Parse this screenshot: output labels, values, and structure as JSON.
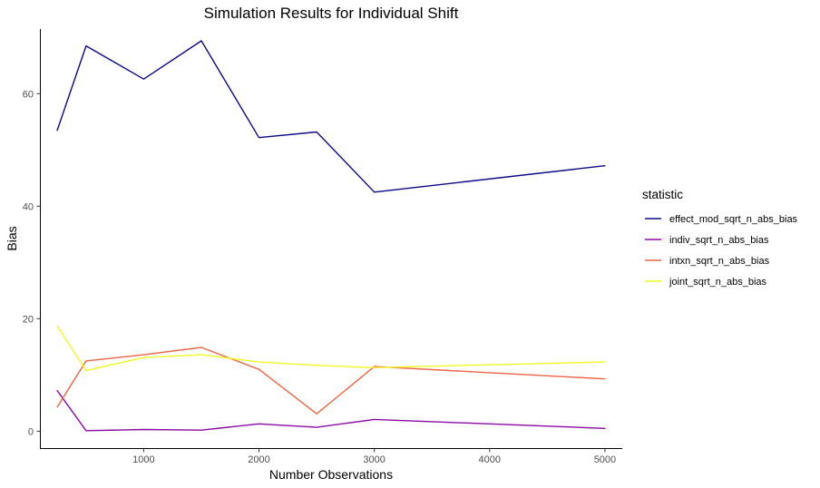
{
  "chart_data": {
    "type": "line",
    "title": "Simulation Results for Individual Shift",
    "xlabel": "Number Observations",
    "ylabel": "Bias",
    "xlim": [
      100,
      5150
    ],
    "ylim": [
      -3,
      71.5
    ],
    "xticks": [
      1000,
      2000,
      3000,
      4000,
      5000
    ],
    "yticks": [
      0,
      20,
      40,
      60
    ],
    "grid": false,
    "legend": {
      "title": "statistic",
      "position": "right"
    },
    "x": [
      250,
      500,
      1000,
      1500,
      2000,
      2500,
      3000,
      5000
    ],
    "series": [
      {
        "name": "effect_mod_sqrt_n_abs_bias",
        "color": "#0d0887",
        "values": [
          53.5,
          68.5,
          62.6,
          69.4,
          52.2,
          53.2,
          42.5,
          47.2
        ]
      },
      {
        "name": "indiv_sqrt_n_abs_bias",
        "color": "#8b0aa5",
        "values": [
          7.2,
          0.1,
          0.3,
          0.2,
          1.3,
          0.7,
          2.1,
          0.5
        ]
      },
      {
        "name": "intxn_sqrt_n_abs_bias",
        "color": "#ed6445",
        "values": [
          4.3,
          12.5,
          13.6,
          14.9,
          11.0,
          3.1,
          11.5,
          9.3
        ]
      },
      {
        "name": "joint_sqrt_n_abs_bias",
        "color": "#f0f921",
        "values": [
          18.7,
          10.8,
          13.1,
          13.6,
          12.3,
          11.7,
          11.3,
          12.3
        ]
      }
    ]
  }
}
